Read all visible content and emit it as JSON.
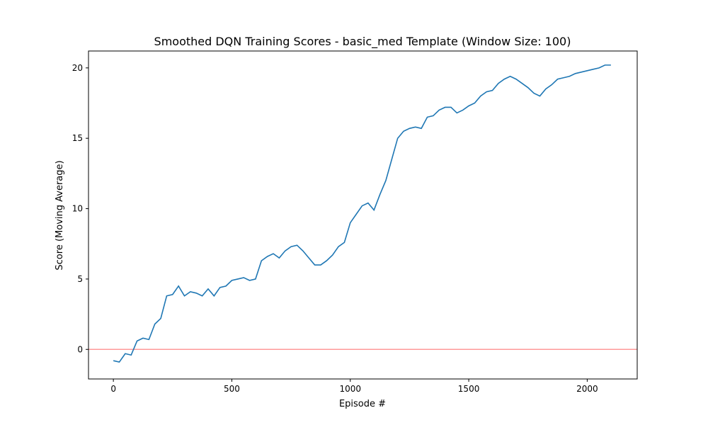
{
  "chart_data": {
    "type": "line",
    "title": "Smoothed DQN Training Scores - basic_med Template (Window Size: 100)",
    "xlabel": "Episode #",
    "ylabel": "Score (Moving Average)",
    "x": [
      0,
      25,
      50,
      75,
      100,
      125,
      150,
      175,
      200,
      225,
      250,
      275,
      300,
      325,
      350,
      375,
      400,
      425,
      450,
      475,
      500,
      525,
      550,
      575,
      600,
      625,
      650,
      675,
      700,
      725,
      750,
      775,
      800,
      825,
      850,
      875,
      900,
      925,
      950,
      975,
      1000,
      1025,
      1050,
      1075,
      1100,
      1125,
      1150,
      1175,
      1200,
      1225,
      1250,
      1275,
      1300,
      1325,
      1350,
      1375,
      1400,
      1425,
      1450,
      1475,
      1500,
      1525,
      1550,
      1575,
      1600,
      1625,
      1650,
      1675,
      1700,
      1725,
      1750,
      1775,
      1800,
      1825,
      1850,
      1875,
      1900,
      1925,
      1950,
      1975,
      2000,
      2025,
      2050,
      2075,
      2100
    ],
    "series": [
      {
        "name": "Score",
        "color": "#1f77b4",
        "values": [
          -0.8,
          -0.9,
          -0.3,
          -0.4,
          0.6,
          0.8,
          0.7,
          1.8,
          2.2,
          3.8,
          3.9,
          4.5,
          3.8,
          4.1,
          4.0,
          3.8,
          4.3,
          3.8,
          4.4,
          4.5,
          4.9,
          5.0,
          5.1,
          4.9,
          5.0,
          6.3,
          6.6,
          6.8,
          6.5,
          7.0,
          7.3,
          7.4,
          7.0,
          6.5,
          6.0,
          6.0,
          6.3,
          6.7,
          7.3,
          7.6,
          9.0,
          9.6,
          10.2,
          10.4,
          9.9,
          11.0,
          12.0,
          13.5,
          15.0,
          15.5,
          15.7,
          15.8,
          15.7,
          16.5,
          16.6,
          17.0,
          17.2,
          17.2,
          16.8,
          17.0,
          17.3,
          17.5,
          18.0,
          18.3,
          18.4,
          18.9,
          19.2,
          19.4,
          19.2,
          18.9,
          18.6,
          18.2,
          18.0,
          18.5,
          18.8,
          19.2,
          19.3,
          19.4,
          19.6,
          19.7,
          19.8,
          19.9,
          20.0,
          20.2,
          20.2
        ]
      }
    ],
    "xlim": [
      -105,
      2211
    ],
    "ylim": [
      -2.1,
      21.2
    ],
    "xticks": [
      0,
      500,
      1000,
      1500,
      2000
    ],
    "yticks": [
      0,
      5,
      10,
      15,
      20
    ],
    "hline": {
      "value": 0,
      "color": "#ff9999"
    },
    "grid": false
  }
}
